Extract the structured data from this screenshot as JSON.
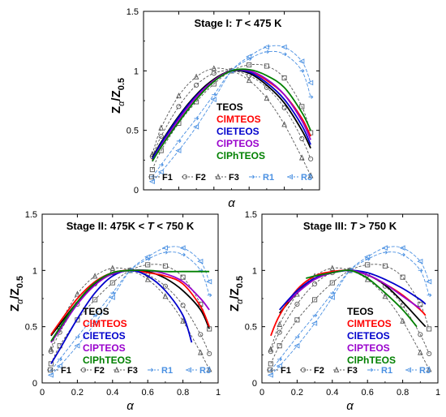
{
  "chart_data": [
    {
      "type": "line",
      "title": "Stage I: T < 475 K",
      "title_prefix": "Stage I: ",
      "title_var": "T",
      "title_suffix": " < 475 K",
      "xlabel": "α",
      "ylabel": "Z α /Z 0.5",
      "xlim": [
        0,
        1
      ],
      "ylim": [
        0,
        1.5
      ],
      "xticks": [
        "0",
        "0.2",
        "0.4",
        "0.6",
        "0.8",
        "1"
      ],
      "yticks": [
        "0",
        "0.5",
        "1",
        "1.5"
      ],
      "show_x_tick_labels": false,
      "series": [
        {
          "name": "TEOS",
          "color": "#000000",
          "x": [
            0.05,
            0.1,
            0.2,
            0.3,
            0.4,
            0.5,
            0.6,
            0.7,
            0.8,
            0.9,
            0.95
          ],
          "y": [
            0.27,
            0.4,
            0.62,
            0.8,
            0.93,
            1.0,
            0.98,
            0.88,
            0.73,
            0.5,
            0.35
          ]
        },
        {
          "name": "ClMTEOS",
          "color": "#ff0000",
          "x": [
            0.05,
            0.1,
            0.2,
            0.3,
            0.4,
            0.5,
            0.6,
            0.7,
            0.8,
            0.9,
            0.95
          ],
          "y": [
            0.25,
            0.38,
            0.6,
            0.78,
            0.92,
            1.0,
            1.0,
            0.92,
            0.8,
            0.6,
            0.45
          ]
        },
        {
          "name": "ClETEOS",
          "color": "#0000cc",
          "x": [
            0.05,
            0.1,
            0.2,
            0.3,
            0.4,
            0.5,
            0.6,
            0.7,
            0.8,
            0.9,
            0.95
          ],
          "y": [
            0.26,
            0.39,
            0.61,
            0.79,
            0.92,
            1.0,
            0.99,
            0.9,
            0.76,
            0.54,
            0.38
          ]
        },
        {
          "name": "ClPTEOS",
          "color": "#9900cc",
          "x": [
            0.05,
            0.1,
            0.2,
            0.3,
            0.4,
            0.5,
            0.6,
            0.7,
            0.8,
            0.9,
            0.95
          ],
          "y": [
            0.24,
            0.37,
            0.59,
            0.78,
            0.92,
            1.0,
            1.0,
            0.93,
            0.8,
            0.58,
            0.42
          ]
        },
        {
          "name": "ClPhTEOS",
          "color": "#008000",
          "x": [
            0.05,
            0.1,
            0.2,
            0.3,
            0.4,
            0.5,
            0.6,
            0.7,
            0.8,
            0.9,
            0.95
          ],
          "y": [
            0.24,
            0.36,
            0.57,
            0.76,
            0.91,
            1.0,
            1.01,
            0.96,
            0.86,
            0.65,
            0.5
          ]
        }
      ],
      "reference_series": [
        {
          "name": "F1",
          "color": "#555555",
          "marker": "square",
          "x": [
            0.05,
            0.1,
            0.2,
            0.3,
            0.4,
            0.5,
            0.6,
            0.7,
            0.8,
            0.9,
            0.95
          ],
          "y": [
            0.17,
            0.33,
            0.56,
            0.74,
            0.89,
            1.0,
            1.05,
            1.04,
            0.94,
            0.7,
            0.48
          ]
        },
        {
          "name": "F2",
          "color": "#555555",
          "marker": "circle",
          "x": [
            0.05,
            0.1,
            0.2,
            0.3,
            0.4,
            0.5,
            0.6,
            0.7,
            0.8,
            0.9,
            0.95
          ],
          "y": [
            0.28,
            0.45,
            0.7,
            0.88,
            0.98,
            1.0,
            0.96,
            0.86,
            0.69,
            0.43,
            0.26
          ]
        },
        {
          "name": "F3",
          "color": "#555555",
          "marker": "triangle",
          "x": [
            0.05,
            0.1,
            0.2,
            0.3,
            0.4,
            0.5,
            0.6,
            0.7,
            0.8,
            0.9,
            0.95
          ],
          "y": [
            0.3,
            0.52,
            0.79,
            0.95,
            1.02,
            1.0,
            0.92,
            0.77,
            0.55,
            0.27,
            0.12
          ]
        },
        {
          "name": "R1",
          "color": "#4a90e2",
          "marker": "arrow",
          "x": [
            0.05,
            0.1,
            0.2,
            0.3,
            0.4,
            0.5,
            0.6,
            0.7,
            0.8,
            0.9,
            0.95
          ],
          "y": [
            0.11,
            0.21,
            0.41,
            0.6,
            0.8,
            1.0,
            1.1,
            1.16,
            1.14,
            1.0,
            0.78
          ]
        },
        {
          "name": "R3",
          "color": "#4a90e2",
          "marker": "triangle-left",
          "x": [
            0.05,
            0.1,
            0.2,
            0.3,
            0.4,
            0.5,
            0.6,
            0.7,
            0.8,
            0.9,
            0.95
          ],
          "y": [
            0.07,
            0.15,
            0.33,
            0.53,
            0.76,
            1.0,
            1.12,
            1.2,
            1.2,
            1.08,
            0.9
          ]
        }
      ]
    },
    {
      "type": "line",
      "title": "Stage II: 475K < T < 750 K",
      "title_prefix": "Stage II: 475K < ",
      "title_var": "T",
      "title_suffix": " < 750 K",
      "xlabel": "α",
      "ylabel": "Z α /Z 0.5",
      "xlim": [
        0,
        1
      ],
      "ylim": [
        0,
        1.5
      ],
      "xticks": [
        "0",
        "0.2",
        "0.4",
        "0.6",
        "0.8",
        "1"
      ],
      "yticks": [
        "0",
        "0.5",
        "1",
        "1.5"
      ],
      "show_x_tick_labels": true,
      "series": [
        {
          "name": "TEOS",
          "color": "#000000",
          "x": [
            0.05,
            0.1,
            0.2,
            0.3,
            0.4,
            0.5,
            0.6,
            0.7,
            0.8,
            0.9,
            0.95
          ],
          "y": [
            0.42,
            0.52,
            0.72,
            0.88,
            0.97,
            1.0,
            0.99,
            0.93,
            0.82,
            0.65,
            0.48
          ]
        },
        {
          "name": "ClMTEOS",
          "color": "#ff0000",
          "x": [
            0.05,
            0.1,
            0.2,
            0.3,
            0.4,
            0.5,
            0.6,
            0.7,
            0.8,
            0.9,
            0.95
          ],
          "y": [
            0.43,
            0.54,
            0.75,
            0.9,
            0.98,
            1.0,
            0.98,
            0.95,
            0.88,
            0.68,
            0.5
          ]
        },
        {
          "name": "ClETEOS",
          "color": "#0000cc",
          "x": [
            0.05,
            0.1,
            0.2,
            0.3,
            0.4,
            0.5,
            0.6,
            0.7,
            0.8,
            0.85
          ],
          "y": [
            0.17,
            0.3,
            0.57,
            0.8,
            0.95,
            1.0,
            0.95,
            0.82,
            0.6,
            0.36
          ]
        },
        {
          "name": "ClPTEOS",
          "color": "#9900cc",
          "x": [
            0.05,
            0.1,
            0.2,
            0.3,
            0.4,
            0.5,
            0.6,
            0.7,
            0.8,
            0.9,
            0.95
          ],
          "y": [
            0.36,
            0.47,
            0.7,
            0.87,
            0.97,
            1.0,
            1.0,
            0.97,
            0.9,
            0.75,
            0.65
          ]
        },
        {
          "name": "ClPhTEOS",
          "color": "#008000",
          "x": [
            0.05,
            0.1,
            0.2,
            0.3,
            0.4,
            0.5,
            0.6,
            0.7,
            0.8,
            0.9,
            0.95
          ],
          "y": [
            0.37,
            0.49,
            0.72,
            0.89,
            0.98,
            1.0,
            1.0,
            0.99,
            0.99,
            0.99,
            0.99
          ]
        }
      ],
      "reference_series": [
        {
          "name": "F1",
          "color": "#555555",
          "marker": "square",
          "x": [
            0.05,
            0.1,
            0.2,
            0.3,
            0.4,
            0.5,
            0.6,
            0.7,
            0.8,
            0.9,
            0.95
          ],
          "y": [
            0.17,
            0.33,
            0.56,
            0.74,
            0.89,
            1.0,
            1.05,
            1.04,
            0.94,
            0.7,
            0.48
          ]
        },
        {
          "name": "F2",
          "color": "#555555",
          "marker": "circle",
          "x": [
            0.05,
            0.1,
            0.2,
            0.3,
            0.4,
            0.5,
            0.6,
            0.7,
            0.8,
            0.9,
            0.95
          ],
          "y": [
            0.28,
            0.45,
            0.7,
            0.88,
            0.98,
            1.0,
            0.96,
            0.86,
            0.69,
            0.43,
            0.26
          ]
        },
        {
          "name": "F3",
          "color": "#555555",
          "marker": "triangle",
          "x": [
            0.05,
            0.1,
            0.2,
            0.3,
            0.4,
            0.5,
            0.6,
            0.7,
            0.8,
            0.9,
            0.95
          ],
          "y": [
            0.3,
            0.52,
            0.79,
            0.95,
            1.02,
            1.0,
            0.92,
            0.77,
            0.55,
            0.27,
            0.12
          ]
        },
        {
          "name": "R1",
          "color": "#4a90e2",
          "marker": "arrow",
          "x": [
            0.05,
            0.1,
            0.2,
            0.3,
            0.4,
            0.5,
            0.6,
            0.7,
            0.8,
            0.9,
            0.95
          ],
          "y": [
            0.11,
            0.21,
            0.41,
            0.6,
            0.8,
            1.0,
            1.1,
            1.16,
            1.14,
            1.0,
            0.78
          ]
        },
        {
          "name": "R3",
          "color": "#4a90e2",
          "marker": "triangle-left",
          "x": [
            0.05,
            0.1,
            0.2,
            0.3,
            0.4,
            0.5,
            0.6,
            0.7,
            0.8,
            0.9,
            0.95
          ],
          "y": [
            0.07,
            0.15,
            0.33,
            0.53,
            0.76,
            1.0,
            1.12,
            1.2,
            1.2,
            1.08,
            0.9
          ]
        }
      ]
    },
    {
      "type": "line",
      "title": "Stage III: T > 750 K",
      "title_prefix": "Stage III: ",
      "title_var": "T",
      "title_suffix": " > 750 K",
      "xlabel": "α",
      "ylabel": "Z α /Z 0.5",
      "xlim": [
        0,
        1
      ],
      "ylim": [
        0,
        1.5
      ],
      "xticks": [
        "0",
        "0.2",
        "0.4",
        "0.6",
        "0.8",
        "1"
      ],
      "yticks": [
        "0",
        "0.5",
        "1",
        "1.5"
      ],
      "show_x_tick_labels": true,
      "series": [
        {
          "name": "TEOS",
          "color": "#000000",
          "x": [
            0.1,
            0.2,
            0.3,
            0.4,
            0.5,
            0.6,
            0.7,
            0.8,
            0.9,
            0.93
          ],
          "y": [
            0.62,
            0.8,
            0.92,
            0.98,
            1.0,
            0.96,
            0.87,
            0.72,
            0.55,
            0.5
          ]
        },
        {
          "name": "ClMTEOS",
          "color": "#ff0000",
          "x": [
            0.05,
            0.1,
            0.2,
            0.3,
            0.4,
            0.5,
            0.6,
            0.7,
            0.8,
            0.9,
            0.93
          ],
          "y": [
            0.42,
            0.6,
            0.83,
            0.95,
            0.99,
            1.0,
            0.96,
            0.88,
            0.78,
            0.65,
            0.6
          ]
        },
        {
          "name": "ClETEOS",
          "color": "#0000cc",
          "x": [
            0.1,
            0.2,
            0.3,
            0.4,
            0.5,
            0.6,
            0.7,
            0.8,
            0.9,
            0.93
          ],
          "y": [
            0.65,
            0.82,
            0.93,
            0.98,
            1.0,
            0.98,
            0.92,
            0.84,
            0.74,
            0.7
          ]
        },
        {
          "name": "ClPTEOS",
          "color": "#9900cc",
          "x": [
            0.15,
            0.2,
            0.3,
            0.4,
            0.5,
            0.6,
            0.7,
            0.8,
            0.9
          ],
          "y": [
            0.72,
            0.8,
            0.92,
            0.98,
            1.0,
            0.96,
            0.88,
            0.77,
            0.66
          ]
        },
        {
          "name": "ClPhTEOS",
          "color": "#008000",
          "x": [
            0.25,
            0.3,
            0.4,
            0.5,
            0.6,
            0.7,
            0.8,
            0.88
          ],
          "y": [
            0.93,
            0.95,
            0.98,
            1.0,
            0.93,
            0.8,
            0.65,
            0.5
          ]
        }
      ],
      "reference_series": [
        {
          "name": "F1",
          "color": "#555555",
          "marker": "square",
          "x": [
            0.05,
            0.1,
            0.2,
            0.3,
            0.4,
            0.5,
            0.6,
            0.7,
            0.8,
            0.9,
            0.95
          ],
          "y": [
            0.17,
            0.33,
            0.56,
            0.74,
            0.89,
            1.0,
            1.05,
            1.04,
            0.94,
            0.7,
            0.48
          ]
        },
        {
          "name": "F2",
          "color": "#555555",
          "marker": "circle",
          "x": [
            0.05,
            0.1,
            0.2,
            0.3,
            0.4,
            0.5,
            0.6,
            0.7,
            0.8,
            0.9,
            0.95
          ],
          "y": [
            0.28,
            0.45,
            0.7,
            0.88,
            0.98,
            1.0,
            0.96,
            0.86,
            0.69,
            0.43,
            0.26
          ]
        },
        {
          "name": "F3",
          "color": "#555555",
          "marker": "triangle",
          "x": [
            0.05,
            0.1,
            0.2,
            0.3,
            0.4,
            0.5,
            0.6,
            0.7,
            0.8,
            0.9,
            0.95
          ],
          "y": [
            0.3,
            0.52,
            0.79,
            0.95,
            1.02,
            1.0,
            0.92,
            0.77,
            0.55,
            0.27,
            0.12
          ]
        },
        {
          "name": "R1",
          "color": "#4a90e2",
          "marker": "arrow",
          "x": [
            0.05,
            0.1,
            0.2,
            0.3,
            0.4,
            0.5,
            0.6,
            0.7,
            0.8,
            0.9,
            0.95
          ],
          "y": [
            0.11,
            0.21,
            0.41,
            0.6,
            0.8,
            1.0,
            1.1,
            1.16,
            1.14,
            1.0,
            0.78
          ]
        },
        {
          "name": "R3",
          "color": "#4a90e2",
          "marker": "triangle-left",
          "x": [
            0.05,
            0.1,
            0.2,
            0.3,
            0.4,
            0.5,
            0.6,
            0.7,
            0.8,
            0.9,
            0.95
          ],
          "y": [
            0.07,
            0.15,
            0.33,
            0.53,
            0.76,
            1.0,
            1.12,
            1.2,
            1.2,
            1.08,
            0.9
          ]
        }
      ]
    }
  ]
}
